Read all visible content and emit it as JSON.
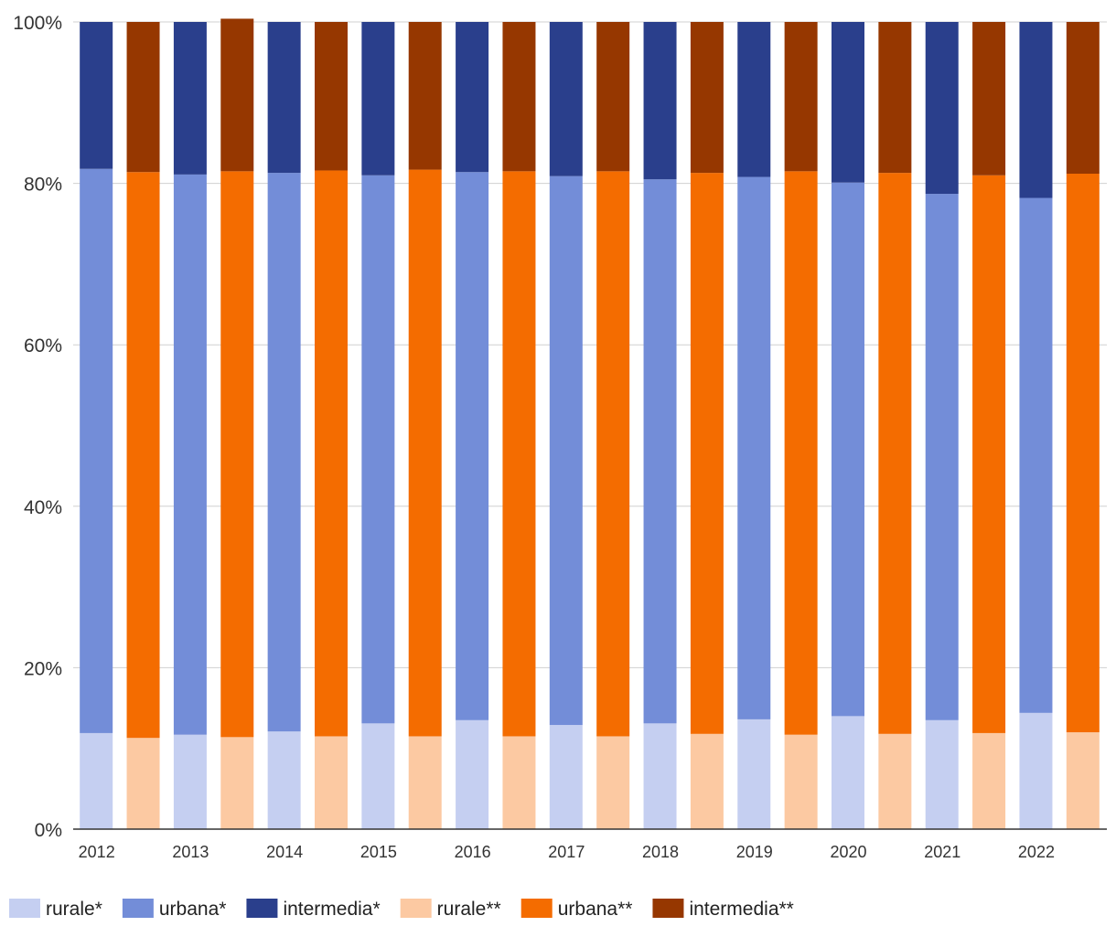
{
  "chart_data": {
    "type": "bar",
    "stacked": true,
    "normalized": true,
    "title": "",
    "xlabel": "",
    "ylabel": "",
    "ylim": [
      0,
      100
    ],
    "y_ticks": [
      "0%",
      "20%",
      "40%",
      "60%",
      "80%",
      "100%"
    ],
    "x_tick_labels": [
      "2012",
      "2013",
      "2014",
      "2015",
      "2016",
      "2017",
      "2018",
      "2019",
      "2020",
      "2021",
      "2022"
    ],
    "categories": [
      "2012*",
      "2012**",
      "2013*",
      "2013**",
      "2014*",
      "2014**",
      "2015*",
      "2015**",
      "2016*",
      "2016**",
      "2017*",
      "2017**",
      "2018*",
      "2018**",
      "2019*",
      "2019**",
      "2020*",
      "2020**",
      "2021*",
      "2021**",
      "2022*",
      "2022**"
    ],
    "bars": [
      {
        "group": "*",
        "values": [
          11.9,
          69.9,
          18.2
        ]
      },
      {
        "group": "**",
        "values": [
          11.3,
          70.1,
          18.6
        ]
      },
      {
        "group": "*",
        "values": [
          11.7,
          69.4,
          18.9
        ]
      },
      {
        "group": "**",
        "values": [
          11.4,
          70.1,
          18.9
        ]
      },
      {
        "group": "*",
        "values": [
          12.1,
          69.2,
          18.7
        ]
      },
      {
        "group": "**",
        "values": [
          11.5,
          70.1,
          18.4
        ]
      },
      {
        "group": "*",
        "values": [
          13.1,
          67.9,
          19.0
        ]
      },
      {
        "group": "**",
        "values": [
          11.5,
          70.2,
          18.3
        ]
      },
      {
        "group": "*",
        "values": [
          13.5,
          67.9,
          18.6
        ]
      },
      {
        "group": "**",
        "values": [
          11.5,
          70.0,
          18.5
        ]
      },
      {
        "group": "*",
        "values": [
          12.9,
          68.0,
          19.1
        ]
      },
      {
        "group": "**",
        "values": [
          11.5,
          70.0,
          18.5
        ]
      },
      {
        "group": "*",
        "values": [
          13.1,
          67.4,
          19.5
        ]
      },
      {
        "group": "**",
        "values": [
          11.8,
          69.5,
          18.7
        ]
      },
      {
        "group": "*",
        "values": [
          13.6,
          67.2,
          19.2
        ]
      },
      {
        "group": "**",
        "values": [
          11.7,
          69.8,
          18.5
        ]
      },
      {
        "group": "*",
        "values": [
          14.0,
          66.1,
          19.9
        ]
      },
      {
        "group": "**",
        "values": [
          11.8,
          69.5,
          18.7
        ]
      },
      {
        "group": "*",
        "values": [
          13.5,
          65.2,
          21.3
        ]
      },
      {
        "group": "**",
        "values": [
          11.9,
          69.1,
          19.0
        ]
      },
      {
        "group": "*",
        "values": [
          14.4,
          63.8,
          21.8
        ]
      },
      {
        "group": "**",
        "values": [
          12.0,
          69.2,
          18.8
        ]
      }
    ],
    "series": [
      {
        "name": "rurale*",
        "group": "*",
        "level": 0,
        "color": "#c5cff1"
      },
      {
        "name": "urbana*",
        "group": "*",
        "level": 1,
        "color": "#738dd8"
      },
      {
        "name": "intermedia*",
        "group": "*",
        "level": 2,
        "color": "#2a3f8c"
      },
      {
        "name": "rurale**",
        "group": "**",
        "level": 0,
        "color": "#fcc9a2"
      },
      {
        "name": "urbana**",
        "group": "**",
        "level": 1,
        "color": "#f46c00"
      },
      {
        "name": "intermedia**",
        "group": "**",
        "level": 2,
        "color": "#963700"
      }
    ],
    "grid": true,
    "legend_position": "bottom"
  }
}
